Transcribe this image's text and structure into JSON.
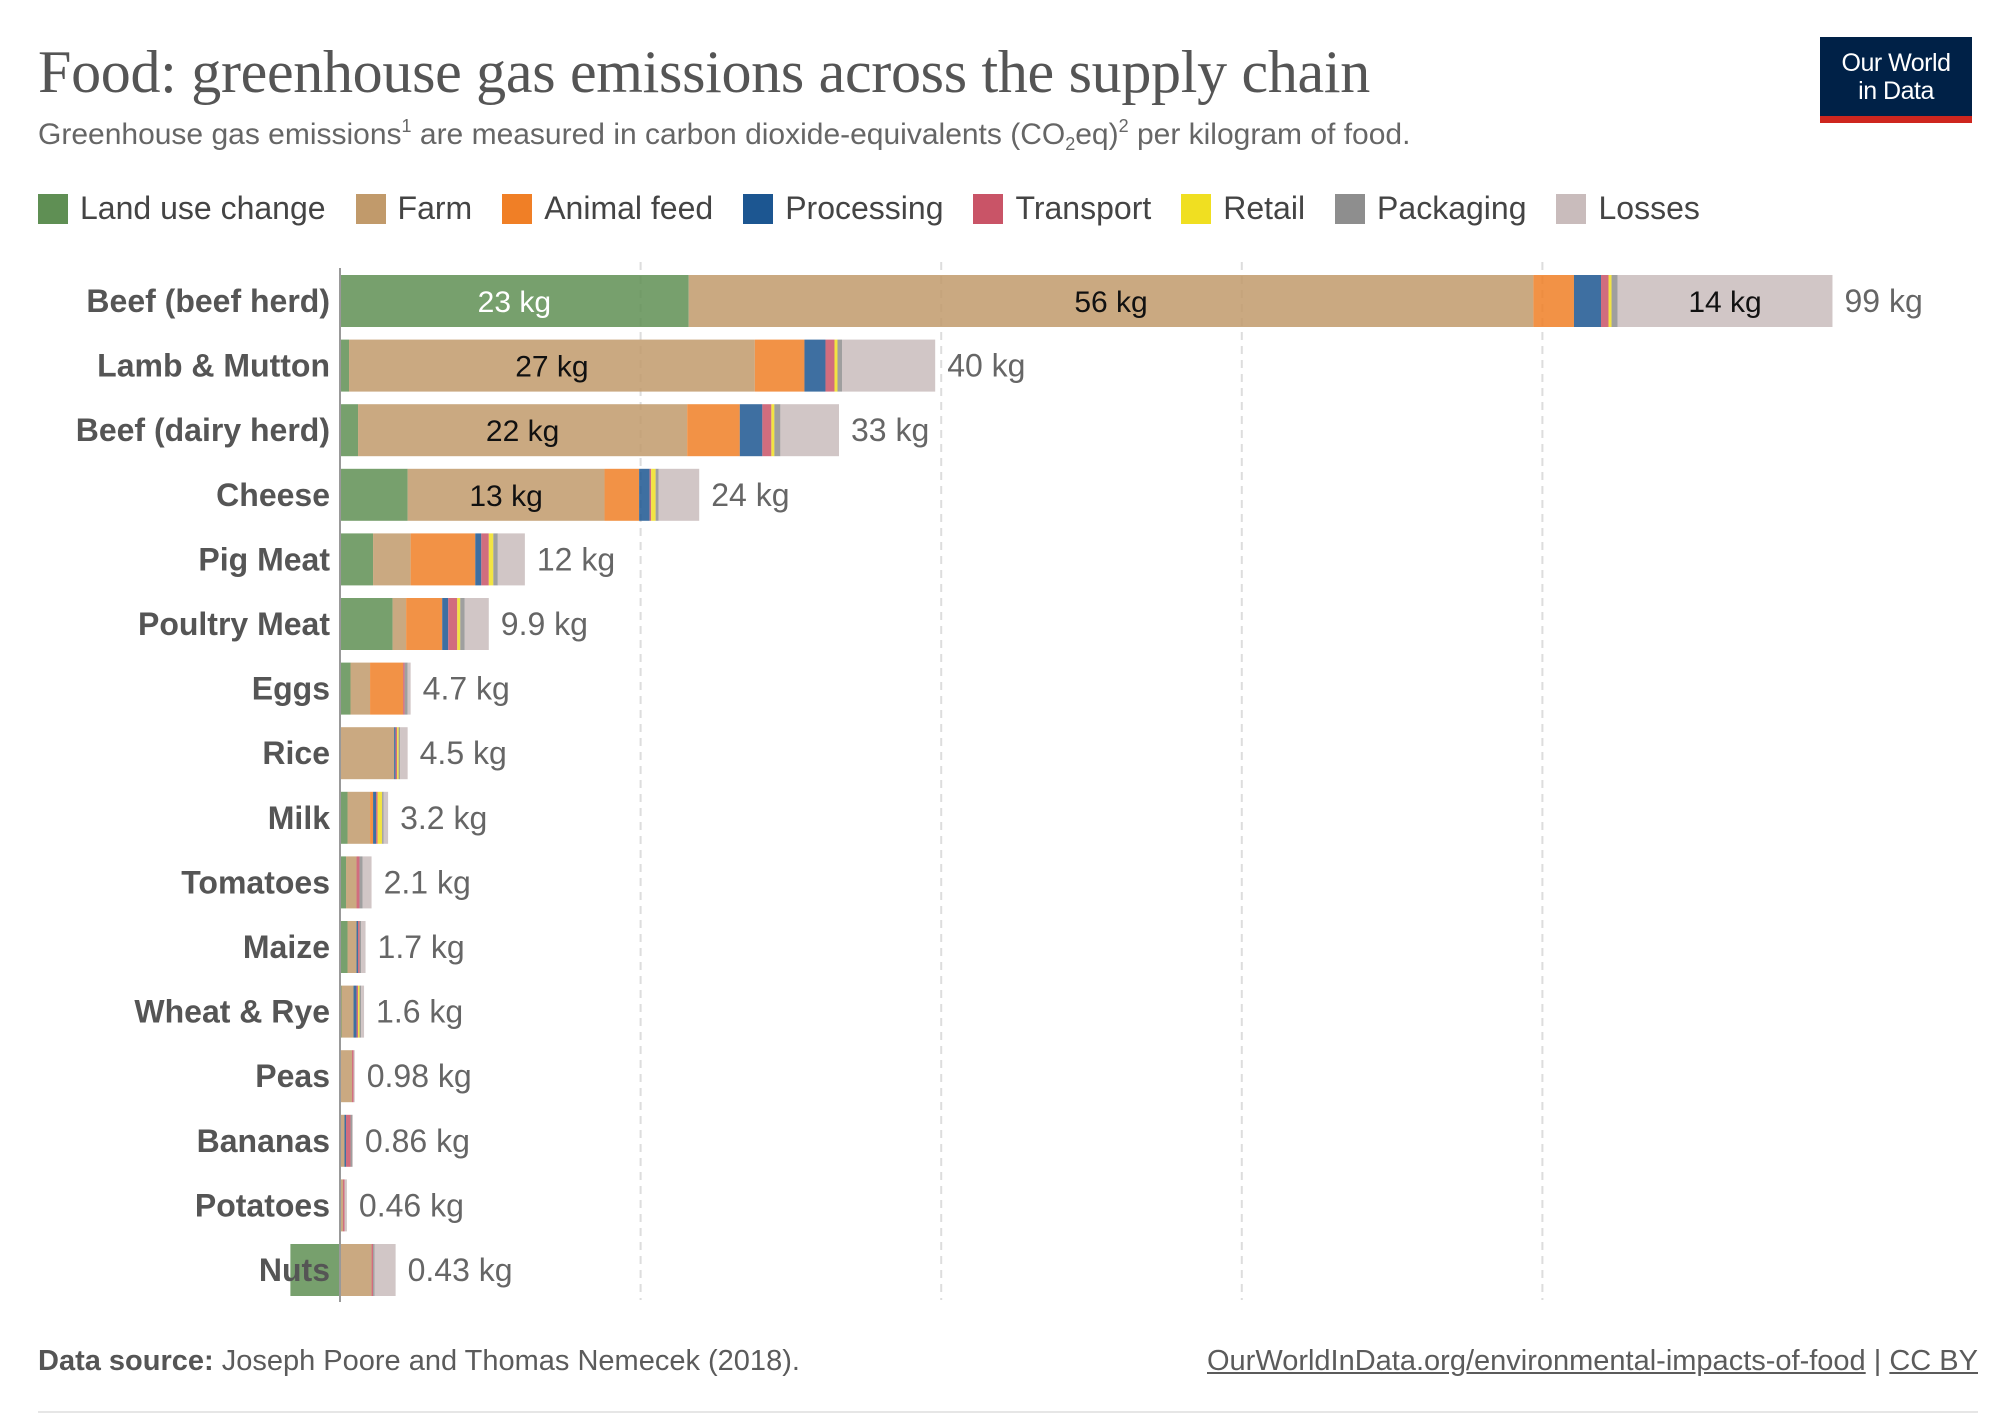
{
  "title": "Food: greenhouse gas emissions across the supply chain",
  "subtitle": {
    "part1": "Greenhouse gas emissions",
    "ref1": "1",
    "part2": " are measured in carbon dioxide-equivalents (CO",
    "sub": "2",
    "part3": "eq)",
    "ref2": "2",
    "part4": " per kilogram of food."
  },
  "logo": {
    "line1": "Our World",
    "line2": "in Data"
  },
  "footer": {
    "source_label": "Data source:",
    "source_text": "Joseph Poore and Thomas Nemecek (2018).",
    "link": "OurWorldInData.org/environmental-impacts-of-food",
    "separator": " | ",
    "license": "CC BY"
  },
  "chart_data": {
    "type": "bar",
    "orientation": "horizontal",
    "stacked": true,
    "title": "Food: greenhouse gas emissions across the supply chain",
    "unit": "kg",
    "xlim": [
      0,
      100
    ],
    "gridlines_at": [
      0,
      20,
      40,
      60,
      80
    ],
    "grid": true,
    "legend_position": "top",
    "series_meta": [
      {
        "name": "Land use change",
        "color": "#5f8f54"
      },
      {
        "name": "Farm",
        "color": "#c19a6b"
      },
      {
        "name": "Animal feed",
        "color": "#f07f26"
      },
      {
        "name": "Processing",
        "color": "#1c5691"
      },
      {
        "name": "Transport",
        "color": "#c95467"
      },
      {
        "name": "Retail",
        "color": "#f0df21"
      },
      {
        "name": "Packaging",
        "color": "#8e8e8e"
      },
      {
        "name": "Losses",
        "color": "#c9bcbc"
      }
    ],
    "categories": [
      "Beef (beef herd)",
      "Lamb & Mutton",
      "Beef (dairy herd)",
      "Cheese",
      "Pig Meat",
      "Poultry Meat",
      "Eggs",
      "Rice",
      "Milk",
      "Tomatoes",
      "Maize",
      "Wheat & Rye",
      "Peas",
      "Bananas",
      "Potatoes",
      "Nuts"
    ],
    "segments": [
      [
        23.2,
        56.2,
        2.7,
        1.8,
        0.5,
        0.2,
        0.4,
        14.3
      ],
      [
        0.6,
        27.0,
        3.3,
        1.4,
        0.6,
        0.2,
        0.3,
        6.2
      ],
      [
        1.2,
        21.9,
        3.5,
        1.5,
        0.6,
        0.2,
        0.4,
        3.9
      ],
      [
        4.5,
        13.1,
        2.3,
        0.7,
        0.1,
        0.3,
        0.2,
        2.7
      ],
      [
        2.2,
        2.5,
        4.3,
        0.4,
        0.5,
        0.3,
        0.3,
        1.8
      ],
      [
        3.5,
        0.9,
        2.4,
        0.4,
        0.6,
        0.2,
        0.3,
        1.6
      ],
      [
        0.7,
        1.3,
        2.2,
        0.0,
        0.1,
        0.0,
        0.2,
        0.2
      ],
      [
        0.0,
        3.6,
        0.0,
        0.1,
        0.1,
        0.1,
        0.1,
        0.5
      ],
      [
        0.5,
        1.5,
        0.2,
        0.2,
        0.1,
        0.3,
        0.1,
        0.3
      ],
      [
        0.4,
        0.7,
        0.0,
        0.0,
        0.2,
        0.0,
        0.2,
        0.6
      ],
      [
        0.5,
        0.6,
        0.0,
        0.1,
        0.1,
        0.0,
        0.1,
        0.3
      ],
      [
        0.1,
        0.8,
        0.0,
        0.2,
        0.1,
        0.1,
        0.1,
        0.2
      ],
      [
        0.0,
        0.8,
        0.0,
        0.0,
        0.1,
        0.0,
        0.0,
        0.08
      ],
      [
        0.0,
        0.3,
        0.0,
        0.1,
        0.3,
        0.0,
        0.1,
        0.06
      ],
      [
        0.0,
        0.2,
        0.0,
        0.0,
        0.1,
        0.0,
        0.0,
        0.16
      ],
      [
        -3.3,
        2.1,
        0.0,
        0.0,
        0.1,
        0.0,
        0.1,
        1.4
      ]
    ],
    "segment_labels": [
      {
        "row": 0,
        "series": 0,
        "text": "23 kg"
      },
      {
        "row": 0,
        "series": 1,
        "text": "56 kg"
      },
      {
        "row": 0,
        "series": 7,
        "text": "14 kg"
      },
      {
        "row": 1,
        "series": 1,
        "text": "27 kg"
      },
      {
        "row": 2,
        "series": 1,
        "text": "22 kg"
      },
      {
        "row": 3,
        "series": 1,
        "text": "13 kg"
      }
    ],
    "totals": [
      "99 kg",
      "40 kg",
      "33 kg",
      "24 kg",
      "12 kg",
      "9.9 kg",
      "4.7 kg",
      "4.5 kg",
      "3.2 kg",
      "2.1 kg",
      "1.7 kg",
      "1.6 kg",
      "0.98 kg",
      "0.86 kg",
      "0.46 kg",
      "0.43 kg"
    ]
  }
}
